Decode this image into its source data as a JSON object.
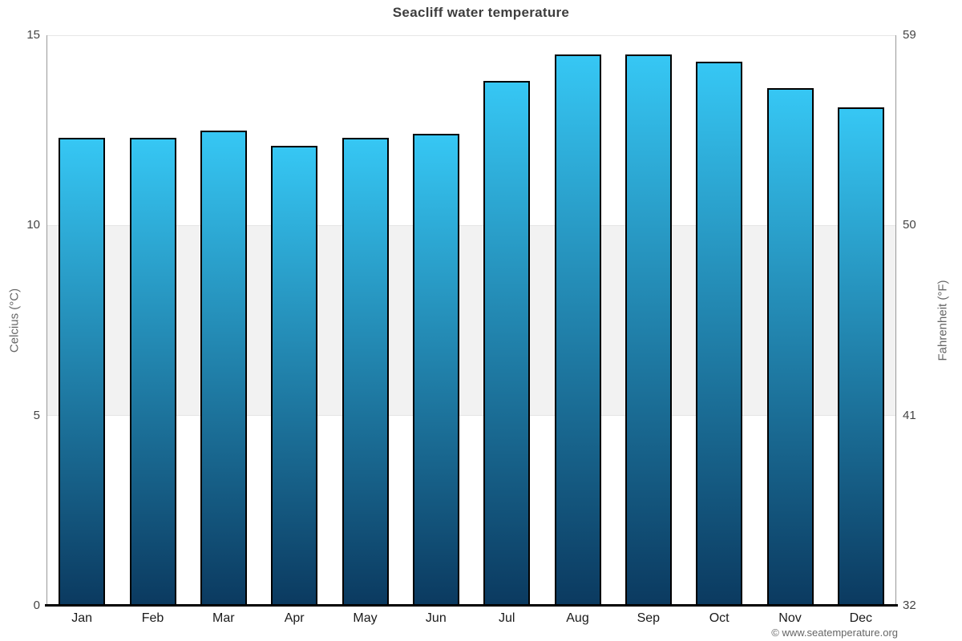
{
  "title": "Seacliff water temperature",
  "attribution": "© www.seatemperature.org",
  "y_axis_left": {
    "title": "Celcius (°C)",
    "ticks": [
      0,
      5,
      10,
      15
    ]
  },
  "y_axis_right": {
    "title": "Fahrenheit (°F)",
    "ticks": [
      32,
      41,
      50,
      59
    ]
  },
  "chart_data": {
    "type": "bar",
    "title": "Seacliff water temperature",
    "categories": [
      "Jan",
      "Feb",
      "Mar",
      "Apr",
      "May",
      "Jun",
      "Jul",
      "Aug",
      "Sep",
      "Oct",
      "Nov",
      "Dec"
    ],
    "series": [
      {
        "name": "Water temperature",
        "unit": "°C",
        "values": [
          12.3,
          12.3,
          12.5,
          12.1,
          12.3,
          12.4,
          13.8,
          14.5,
          14.5,
          14.3,
          13.6,
          13.1
        ]
      }
    ],
    "xlabel": "",
    "ylabel_left": "Celcius (°C)",
    "ylabel_right": "Fahrenheit (°F)",
    "ylim": [
      0,
      15
    ],
    "yticks_left": [
      0,
      5,
      10,
      15
    ],
    "yticks_right": [
      32,
      41,
      50,
      59
    ],
    "grid": true,
    "band_celsius": [
      5,
      10
    ],
    "legend": "none",
    "colors": {
      "bar_top": "#36c7f4",
      "bar_bottom": "#0b3a60",
      "bar_border": "#000000",
      "band": "#f2f2f2",
      "gridline": "#e6e6e6",
      "axis_line": "#999999",
      "baseline": "#000000",
      "title_text": "#3d3d3d",
      "tick_text": "#444444",
      "month_text": "#1a1a1a",
      "axis_title_text": "#666666",
      "attribution_text": "#666666"
    }
  }
}
